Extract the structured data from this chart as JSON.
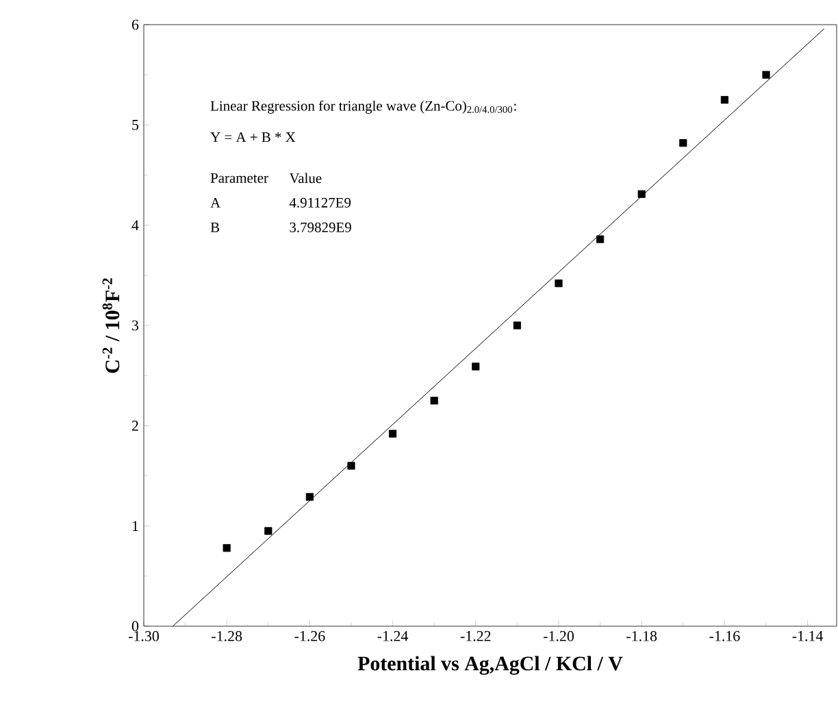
{
  "chart_data": {
    "type": "scatter",
    "xlabel": "Potential vs Ag,AgCl / KCl / V",
    "ylabel": "C$^{-2}$ / 10$^{8}$F$^{-2}$",
    "xlim": [
      -1.3,
      -1.133
    ],
    "ylim": [
      0,
      6
    ],
    "xticks": [
      {
        "value": -1.3,
        "label": "-1.30"
      },
      {
        "value": -1.28,
        "label": "-1.28"
      },
      {
        "value": -1.26,
        "label": "-1.26"
      },
      {
        "value": -1.24,
        "label": "-1.24"
      },
      {
        "value": -1.22,
        "label": "-1.22"
      },
      {
        "value": -1.2,
        "label": "-1.20"
      },
      {
        "value": -1.18,
        "label": "-1.18"
      },
      {
        "value": -1.16,
        "label": "-1.16"
      },
      {
        "value": -1.14,
        "label": "-1.14"
      }
    ],
    "yticks": [
      0,
      1,
      2,
      3,
      4,
      5,
      6
    ],
    "series": [
      {
        "type": "scatter",
        "color": "#000000",
        "marker": "square",
        "x": [
          -1.28,
          -1.27,
          -1.26,
          -1.25,
          -1.24,
          -1.23,
          -1.22,
          -1.21,
          -1.2,
          -1.19,
          -1.18,
          -1.17,
          -1.16,
          -1.15
        ],
        "values": [
          0.78,
          0.95,
          1.29,
          1.6,
          1.92,
          2.25,
          2.59,
          3.0,
          3.42,
          3.86,
          4.31,
          4.82,
          5.25,
          5.5
        ]
      },
      {
        "type": "line",
        "color": "#000000",
        "line_style": "solid",
        "x": [
          -1.293,
          -1.136
        ],
        "values": [
          0,
          5.96
        ]
      }
    ],
    "annotations": [
      "Linear Regression for triangle wave (Zn-Co)$_{2.0/4.0/300}$:",
      "Y = A + B * X",
      "Parameter",
      "Value",
      "A",
      "4.91127E9",
      "B",
      "3.79829E9"
    ]
  }
}
